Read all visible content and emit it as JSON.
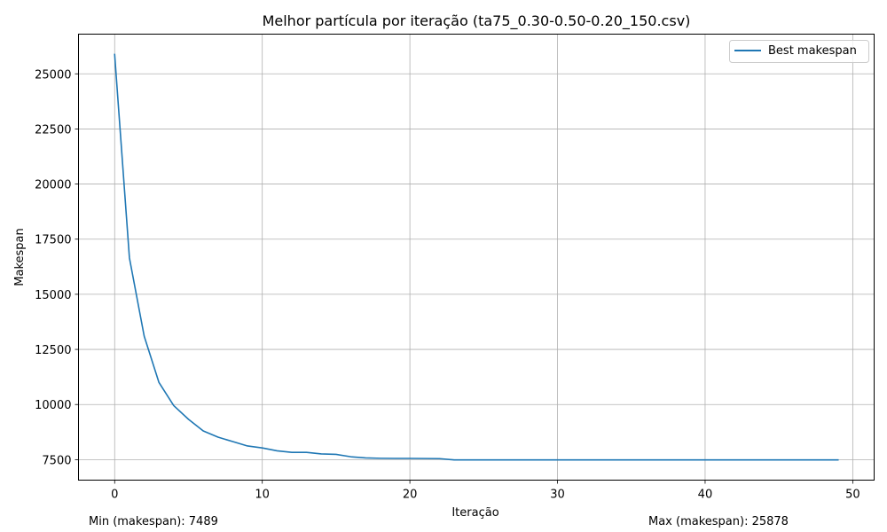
{
  "chart_data": {
    "type": "line",
    "title": "Melhor partícula por iteração (ta75_0.30-0.50-0.20_150.csv)",
    "xlabel": "Iteração",
    "ylabel": "Makespan",
    "xlim": [
      -2.45,
      51.45
    ],
    "ylim": [
      6570,
      26800
    ],
    "xticks": [
      0,
      10,
      20,
      30,
      40,
      50
    ],
    "yticks": [
      7500,
      10000,
      12500,
      15000,
      17500,
      20000,
      22500,
      25000
    ],
    "grid": true,
    "legend_position": "top-right",
    "series": [
      {
        "name": "Best makespan",
        "color": "#1f77b4",
        "x": [
          0,
          1,
          2,
          3,
          4,
          5,
          6,
          7,
          8,
          9,
          10,
          11,
          12,
          13,
          14,
          15,
          16,
          17,
          18,
          19,
          20,
          21,
          22,
          23,
          24,
          25,
          26,
          27,
          28,
          29,
          30,
          31,
          32,
          33,
          34,
          35,
          36,
          37,
          38,
          39,
          40,
          41,
          42,
          43,
          44,
          45,
          46,
          47,
          48,
          49
        ],
        "y": [
          25878,
          16650,
          13100,
          11000,
          9950,
          9330,
          8800,
          8520,
          8320,
          8120,
          8030,
          7900,
          7830,
          7830,
          7760,
          7740,
          7630,
          7580,
          7560,
          7555,
          7555,
          7550,
          7545,
          7489,
          7489,
          7489,
          7489,
          7489,
          7489,
          7489,
          7489,
          7489,
          7489,
          7489,
          7489,
          7489,
          7489,
          7489,
          7489,
          7489,
          7489,
          7489,
          7489,
          7489,
          7489,
          7489,
          7489,
          7489,
          7489,
          7489
        ]
      }
    ]
  },
  "footer": {
    "min_text": "Min (makespan): 7489",
    "max_text": "Max (makespan): 25878"
  }
}
